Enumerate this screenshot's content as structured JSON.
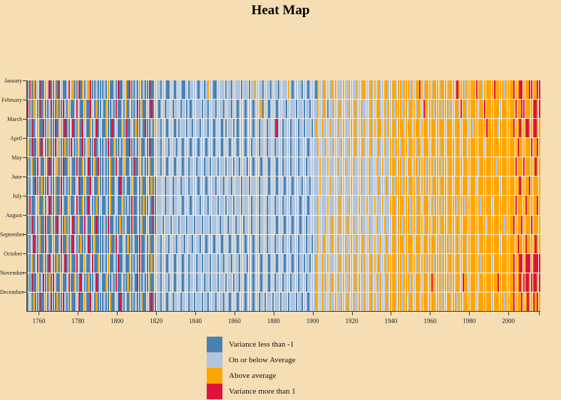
{
  "title": "Heat Map",
  "colors": {
    "background": "#F5DEB3",
    "axis": "#3a3a3a",
    "steelblue": "#4682B4",
    "lightsteelblue": "#B0C4DE",
    "orange": "#FFA500",
    "crimson": "#DC143C"
  },
  "legend": {
    "items": [
      {
        "label": "Variance less than -1",
        "color": "#4682B4"
      },
      {
        "label": "On or below Average",
        "color": "#B0C4DE"
      },
      {
        "label": "Above average",
        "color": "#FFA500"
      },
      {
        "label": "Variance more than 1",
        "color": "#DC143C"
      }
    ]
  },
  "chart_data": {
    "type": "heatmap",
    "title": "Heat Map",
    "xlabel": "",
    "ylabel": "",
    "legend_position": "bottom",
    "x_axis": {
      "start_year": 1754,
      "end_year": 2015,
      "tick_years": [
        1760,
        1780,
        1800,
        1820,
        1840,
        1860,
        1880,
        1900,
        1920,
        1940,
        1960,
        1980,
        2000
      ],
      "end_tick": true
    },
    "value_legend": {
      "0": "Variance less than -1",
      "1": "On or below Average",
      "2": "Above average",
      "3": "Variance more than 1"
    },
    "palette": {
      "0": "#4682B4",
      "1": "#B0C4DE",
      "2": "#FFA500",
      "3": "#DC143C"
    },
    "rows": [
      {
        "month": "January",
        "segments": [
          "0302013002",
          "1300203100",
          "1312003020",
          "1230010",
          "0010200103",
          "0012030010",
          "201003001",
          "1101100110",
          "1110010111",
          "1011012110",
          "0111101101",
          "1110111011",
          "2111011101",
          "1101111210",
          "1111011011",
          "1021121112",
          "1211121121",
          "1121122112",
          "1212112211",
          "2212212221",
          "2122321222",
          "1222122212",
          "2213222122",
          "2223221222",
          "2232222122",
          "2232233222",
          "332233"
        ]
      },
      {
        "month": "February",
        "segments": [
          "3002103020",
          "0130020031",
          "0200131002",
          "0031020",
          "0102001030",
          "0102010013",
          "020010301",
          "1011011101",
          "1101101011",
          "1110110111",
          "0111011101",
          "1011101110",
          "1112011011",
          "1011110111",
          "1011101101",
          "1121121011",
          "2112111121",
          "1211211112",
          "1122112121",
          "2122212212",
          "2212213212",
          "2122212221",
          "2122132212",
          "2222122322",
          "2222212222",
          "2223223322",
          "223323"
        ]
      },
      {
        "month": "March",
        "segments": [
          "0030120030",
          "2100301203",
          "0013002031",
          "0020130",
          "1002003010",
          "0203001020",
          "010300102",
          "1101101110",
          "1011101101",
          "1101110110",
          "1110101110",
          "1011101110",
          "1101110111",
          "0311011101",
          "1101101110",
          "1211211121",
          "1121121112",
          "1211212112",
          "1212212121",
          "2212221222",
          "1222122212",
          "2212222122",
          "2122212221",
          "2122222232",
          "2222122222",
          "2232232233",
          "223322"
        ]
      },
      {
        "month": "April",
        "segments": [
          "2030020310",
          "0200312002",
          "0031002030",
          "1200301",
          "0010300200",
          "1020030010",
          "200103001",
          "1101110111",
          "0110111011",
          "1011101110",
          "1110111011",
          "1011101101",
          "1101110111",
          "0111011101",
          "1101111011",
          "1121112111",
          "2111211121",
          "1211121112",
          "1112112112",
          "2122122212",
          "2212212221",
          "2212122122",
          "2212212212",
          "2222222122",
          "2222222222",
          "2222322222",
          "232232"
        ]
      },
      {
        "month": "May",
        "segments": [
          "0020031002",
          "0300120030",
          "0210030020",
          "1300203",
          "0010020031",
          "0020010300",
          "201002001",
          "1101101110",
          "1110110111",
          "0111011011",
          "1011101110",
          "1101110110",
          "1110111011",
          "1011011101",
          "1101110111",
          "1112111211",
          "1121112111",
          "2111211121",
          "1121121112",
          "2212212122",
          "1221222122",
          "2122212212",
          "2212221222",
          "2222122222",
          "2221222222",
          "2223222322",
          "222322"
        ]
      },
      {
        "month": "June",
        "segments": [
          "0010300200",
          "3100200301",
          "0020013002",
          "0031002",
          "0010020010",
          "3001002001",
          "020010200",
          "1111011101",
          "1101110111",
          "1011101111",
          "0111011101",
          "1110111011",
          "1101111011",
          "1011101110",
          "1111011101",
          "1112111121",
          "1111211112",
          "1111211121",
          "1112111211",
          "2122212212",
          "2212122122",
          "1222122212",
          "2122212221",
          "2221222222",
          "2222212222",
          "2222232222",
          "322222"
        ]
      },
      {
        "month": "July",
        "segments": [
          "0300120020",
          "1300200310",
          "0200130020",
          "0310020",
          "1001020010",
          "0200103001",
          "002001030",
          "1111011101",
          "1110111011",
          "1101110111",
          "1011101110",
          "1110111101",
          "1101110111",
          "0111011101",
          "1110111011",
          "1121111211",
          "1112111121",
          "1112111211",
          "1211121112",
          "2212221221",
          "2212212221",
          "2122212212",
          "2221222122",
          "2222212222",
          "2122222222",
          "2223222232",
          "222232"
        ]
      },
      {
        "month": "August",
        "segments": [
          "0030102003",
          "0020031002",
          "0013002003",
          "1002030",
          "0010300100",
          "2001003001",
          "020010030",
          "1110111011",
          "1011101110",
          "1110111011",
          "1101110111",
          "0111011101",
          "1101110111",
          "1011101110",
          "1110110111",
          "1121112112",
          "1112111211",
          "2111211121",
          "1121112111",
          "2212212221",
          "2212221222",
          "1222122212",
          "2212212222",
          "2222222212",
          "2222222122",
          "2232223222",
          "232222"
        ]
      },
      {
        "month": "September",
        "segments": [
          "0013002003",
          "1002001300",
          "2003100200",
          "1300200",
          "0010020031",
          "0010200100",
          "300102001",
          "1101110111",
          "0111011101",
          "1101101110",
          "1110111011",
          "1011101110",
          "1101110111",
          "0111011101",
          "1101110110",
          "1121121112",
          "1121112112",
          "1121121121",
          "1211211211",
          "2212221222",
          "2122212212",
          "2212212221",
          "2212122212",
          "2222122222",
          "2222212222",
          "2222322232",
          "222322"
        ]
      },
      {
        "month": "October",
        "segments": [
          "0020130020",
          "0310020013",
          "0020031002",
          "0013002",
          "0010200103",
          "0010020010",
          "300100201",
          "1101101110",
          "1110110111",
          "0110111011",
          "1011011101",
          "1101110110",
          "1110111011",
          "1011101110",
          "1101101101",
          "1211211211",
          "1112112121",
          "1211212112",
          "1212112122",
          "2212212212",
          "2212122122",
          "2122212212",
          "2212212212",
          "2222212222",
          "2122222222",
          "2232233233",
          "323333"
        ]
      },
      {
        "month": "November",
        "segments": [
          "0030020130",
          "0203100200",
          "1300200310",
          "0200130",
          "1002001030",
          "0100200103",
          "001002001",
          "1101110110",
          "1110110111",
          "0111011011",
          "1011101110",
          "1101101110",
          "1110111011",
          "0111011101",
          "1101110111",
          "1211212112",
          "1121121121",
          "1212112112",
          "1121211212",
          "2212212221",
          "2122212212",
          "3212212221",
          "2212213221",
          "2222122222",
          "2222322222",
          "2232232333",
          "233323"
        ]
      },
      {
        "month": "December",
        "segments": [
          "0102003002",
          "0130020031",
          "0020013002",
          "0031020",
          "0010020010",
          "3001020010",
          "020010300",
          "1101101101",
          "1101110110",
          "1110110111",
          "0111011011",
          "1011101110",
          "1101101110",
          "1110111011",
          "1011011011",
          "1211211121",
          "1211211211",
          "2112112112",
          "1211211212",
          "2212212212",
          "2122122212",
          "2212212122",
          "1221221222",
          "2221222222",
          "2122222122",
          "2232223223",
          "223232"
        ]
      }
    ]
  }
}
